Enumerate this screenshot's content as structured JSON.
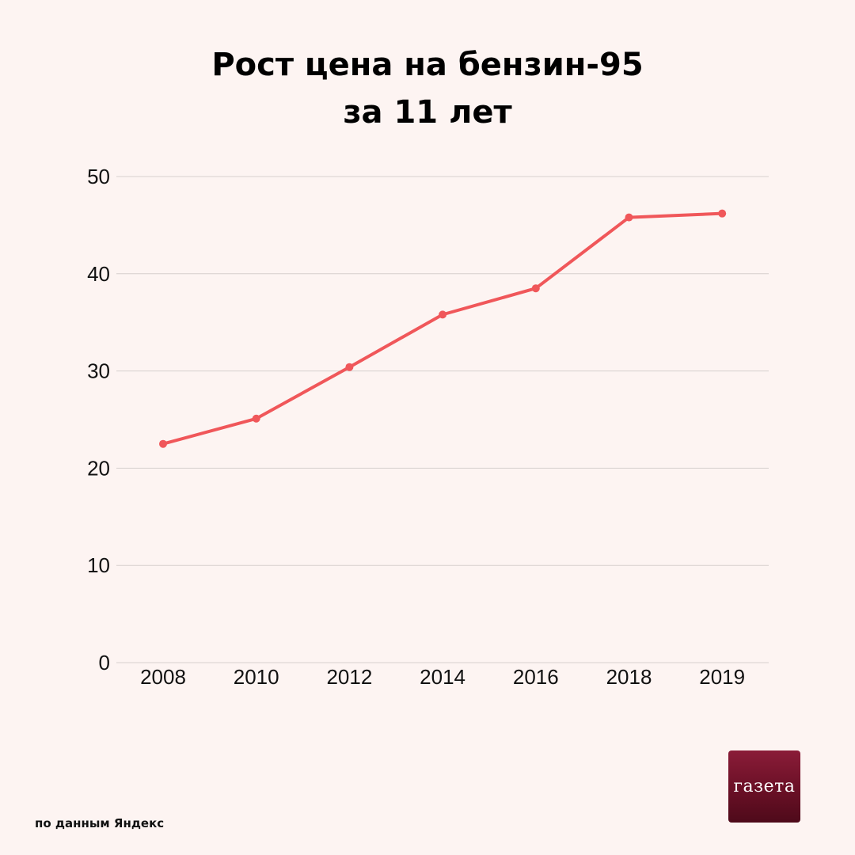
{
  "title": {
    "line1": "Рост цена на бензин-95",
    "line2": "за 11 лет"
  },
  "source": "по данным Яндекс",
  "logo": {
    "text": "газета",
    "color": "#6a1026"
  },
  "colors": {
    "background": "#fdf4f2",
    "line": "#f0575a",
    "grid": "#d6cfcd"
  },
  "chart_data": {
    "type": "line",
    "title": "Рост цена на бензин-95 за 11 лет",
    "categories": [
      "2008",
      "2010",
      "2012",
      "2014",
      "2016",
      "2018",
      "2019"
    ],
    "series": [
      {
        "values": [
          22.5,
          25.1,
          30.4,
          35.8,
          38.5,
          45.8,
          46.2
        ]
      }
    ],
    "yticks": [
      0,
      10,
      20,
      30,
      40,
      50
    ],
    "ylim": [
      0,
      50
    ],
    "xlabel": "",
    "ylabel": "",
    "grid": true,
    "legend": "none"
  }
}
